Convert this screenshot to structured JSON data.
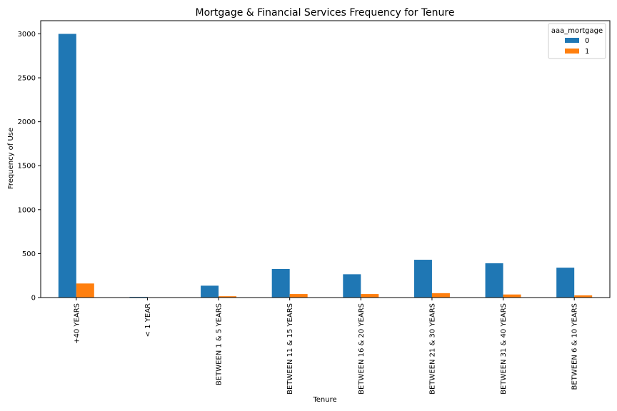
{
  "chart_data": {
    "type": "bar",
    "title": "Mortgage & Financial Services Frequency for Tenure",
    "xlabel": "Tenure",
    "ylabel": "Frequency of Use",
    "ylim": [
      0,
      3150
    ],
    "yticks": [
      0,
      500,
      1000,
      1500,
      2000,
      2500,
      3000
    ],
    "grid": false,
    "legend_placement": "top-right",
    "legend_title": "aaa_mortgage",
    "categories": [
      "+40 YEARS",
      "< 1 YEAR",
      "BETWEEN 1 & 5 YEARS",
      "BETWEEN 11 & 15 YEARS",
      "BETWEEN 16 & 20 YEARS",
      "BETWEEN 21 & 30 YEARS",
      "BETWEEN 31 & 40 YEARS",
      "BETWEEN 6 & 10 YEARS"
    ],
    "series": [
      {
        "name": "0",
        "color": "#1f77b4",
        "values": [
          3000,
          8,
          135,
          325,
          265,
          430,
          390,
          340
        ]
      },
      {
        "name": "1",
        "color": "#ff7f0e",
        "values": [
          160,
          0,
          15,
          40,
          40,
          50,
          35,
          25
        ]
      }
    ]
  }
}
